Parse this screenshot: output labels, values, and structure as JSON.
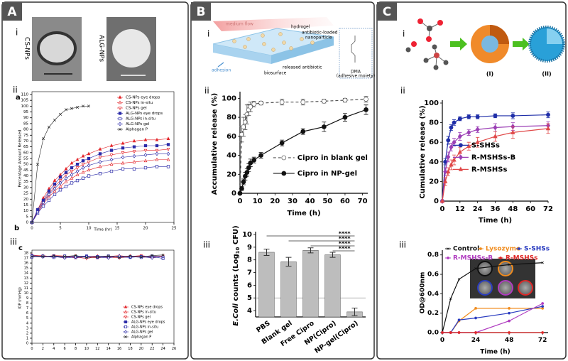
{
  "panels": [
    {
      "label": "A",
      "sections": [
        "i",
        "ii",
        "iii"
      ],
      "images": [
        "CS-NPs",
        "ALG-NPs"
      ],
      "subplot_labels": [
        "a",
        "b",
        "c"
      ]
    },
    {
      "label": "B",
      "sections": [
        "i",
        "ii",
        "iii"
      ],
      "schematic": [
        "medium flow",
        "hydrogel",
        "antibiotic-loaded",
        "nanoparticle",
        "released antibiotic",
        "biosurface",
        "adhesion",
        "DMA",
        "(adhesive moiety)"
      ]
    },
    {
      "label": "C",
      "sections": [
        "i",
        "ii",
        "iii"
      ],
      "schematic": [
        "(I)",
        "(II)"
      ]
    }
  ],
  "chart_data": [
    {
      "type": "line",
      "x_label": "Time (hr)",
      "y_label": "Percentage Amount Released",
      "x": [
        0,
        1,
        2,
        3,
        4,
        5,
        6,
        7,
        8,
        9,
        10,
        12,
        14,
        16,
        18,
        20,
        22,
        24
      ],
      "xlim": [
        0,
        25
      ],
      "xticks": [
        0,
        5,
        10,
        15,
        20,
        25
      ],
      "ylim": [
        0,
        110
      ],
      "yticks": [
        0,
        5,
        10,
        15,
        20,
        25,
        30,
        35,
        40,
        45,
        50,
        55,
        60,
        65,
        70,
        75,
        80,
        85,
        90,
        95,
        100,
        105,
        110
      ],
      "legend": "upper right",
      "series": [
        {
          "name": "CS-NPs eye drops",
          "color": "#e3262b",
          "marker": "triangle",
          "values": [
            0,
            11,
            21,
            29,
            36,
            41,
            46,
            51,
            54,
            57,
            59,
            63,
            66,
            68,
            70,
            71,
            71,
            72
          ]
        },
        {
          "name": "CS-NPs in-situ",
          "color": "#e3262b",
          "marker": "triangle-open",
          "values": [
            0,
            8,
            16,
            22,
            27,
            31,
            35,
            38,
            41,
            43,
            45,
            48,
            50,
            51,
            52,
            53,
            54,
            54
          ]
        },
        {
          "name": "CS-NPs gel",
          "color": "#e3262b",
          "marker": "triangle-down-open",
          "values": [
            0,
            10,
            18,
            25,
            31,
            36,
            41,
            44,
            47,
            50,
            52,
            56,
            58,
            60,
            61,
            62,
            62,
            63
          ]
        },
        {
          "name": "ALG-NPs eye drops",
          "color": "#2a2aa8",
          "marker": "square",
          "values": [
            0,
            11,
            19,
            27,
            33,
            39,
            43,
            47,
            50,
            53,
            55,
            59,
            62,
            64,
            65,
            66,
            66,
            67
          ]
        },
        {
          "name": "ALG-NPs in-situ",
          "color": "#2a2aa8",
          "marker": "square-open",
          "values": [
            0,
            8,
            14,
            19,
            24,
            28,
            31,
            34,
            36,
            38,
            40,
            42,
            44,
            46,
            46,
            47,
            48,
            48
          ]
        },
        {
          "name": "ALG-NPs gel",
          "color": "#2a2aa8",
          "marker": "diamond-open",
          "values": [
            0,
            9,
            17,
            24,
            29,
            34,
            38,
            41,
            44,
            47,
            49,
            52,
            54,
            56,
            57,
            58,
            59,
            59
          ]
        },
        {
          "name": "Alphagan P",
          "color": "#222222",
          "marker": "x",
          "values": [
            0,
            50,
            72,
            82,
            88,
            93,
            97,
            98,
            99,
            100,
            100,
            null,
            null,
            null,
            null,
            null,
            null,
            null
          ]
        }
      ]
    },
    {
      "type": "line",
      "y_label": "IOP (mmHg)",
      "x": [
        0,
        2,
        4,
        6,
        8,
        10,
        12,
        14,
        16,
        18,
        20,
        22,
        24
      ],
      "xlim": [
        0,
        26
      ],
      "xticks": [
        0,
        2,
        4,
        6,
        8,
        10,
        12,
        14,
        16,
        18,
        20,
        22,
        24,
        26
      ],
      "ylim": [
        0,
        18
      ],
      "yticks": [
        0,
        1,
        2,
        3,
        4,
        5,
        6,
        7,
        8,
        9,
        10,
        11,
        12,
        13,
        14,
        15,
        16,
        17,
        18
      ],
      "legend": "lower right",
      "series": [
        {
          "name": "CS-NPs eye drops",
          "color": "#e3262b",
          "marker": "triangle",
          "values": [
            17.6,
            17.4,
            17.3,
            17.1,
            17.4,
            17.2,
            17.0,
            17.3,
            17.5,
            17.2,
            17.4,
            17.3,
            17.2
          ]
        },
        {
          "name": "CS-NPs in-situ",
          "color": "#e3262b",
          "marker": "triangle-open",
          "values": [
            17.4,
            17.5,
            17.2,
            17.3,
            17.0,
            17.3,
            17.4,
            17.1,
            17.3,
            17.4,
            17.2,
            17.1,
            17.3
          ]
        },
        {
          "name": "CS-NPs gel",
          "color": "#e3262b",
          "marker": "triangle-down-open",
          "values": [
            17.3,
            17.2,
            17.5,
            17.4,
            17.2,
            16.9,
            17.3,
            17.2,
            17.0,
            17.3,
            17.5,
            17.2,
            17.4
          ]
        },
        {
          "name": "ALG-NPs eye drops",
          "color": "#2a2aa8",
          "marker": "square",
          "values": [
            17.5,
            17.3,
            17.4,
            17.2,
            17.3,
            17.4,
            17.1,
            17.3,
            17.2,
            17.1,
            17.3,
            17.4,
            17.2
          ]
        },
        {
          "name": "ALG-NPs in-situ",
          "color": "#2a2aa8",
          "marker": "square-open",
          "values": [
            17.2,
            17.4,
            17.1,
            17.4,
            17.1,
            17.2,
            17.3,
            17.4,
            17.2,
            17.3,
            17.1,
            17.3,
            16.9
          ]
        },
        {
          "name": "ALG-NPs gel",
          "color": "#2a2aa8",
          "marker": "diamond-open",
          "values": [
            17.4,
            17.2,
            17.3,
            17.0,
            17.2,
            17.3,
            17.2,
            17.0,
            17.4,
            17.2,
            17.3,
            17.0,
            17.3
          ]
        },
        {
          "name": "Alphagan P",
          "color": "#222222",
          "marker": "x",
          "values": [
            17.3,
            17.3,
            17.4,
            17.3,
            17.5,
            17.1,
            17.2,
            17.4,
            17.1,
            17.4,
            17.2,
            17.5,
            17.6
          ]
        }
      ]
    },
    {
      "type": "line",
      "x_label": "Time (h)",
      "y_label": "Accumulative release (%)",
      "x": [
        0,
        1,
        2,
        3,
        4,
        5,
        6,
        8,
        12,
        24,
        36,
        48,
        60,
        72
      ],
      "xlim": [
        0,
        73
      ],
      "xticks": [
        0,
        10,
        20,
        30,
        40,
        50,
        60,
        70
      ],
      "ylim": [
        0,
        104
      ],
      "yticks": [
        0,
        20,
        40,
        60,
        80,
        100
      ],
      "legend": "center right",
      "series": [
        {
          "name": "Cipro in blank gel",
          "color": "#555555",
          "marker": "circle-open",
          "dashed": true,
          "values": [
            0,
            62,
            70,
            75,
            83,
            88,
            91,
            94,
            95,
            96,
            96,
            97,
            98,
            99
          ],
          "errors": [
            0,
            8,
            10,
            8,
            10,
            6,
            5,
            3,
            2,
            3,
            3,
            2,
            2,
            3
          ]
        },
        {
          "name": "Cipro in NP-gel",
          "color": "#111111",
          "marker": "circle",
          "values": [
            0,
            5,
            12,
            18,
            22,
            27,
            32,
            35,
            40,
            53,
            65,
            70,
            80,
            88
          ],
          "errors": [
            0,
            2,
            3,
            4,
            4,
            4,
            4,
            3,
            3,
            3,
            3,
            5,
            4,
            5
          ]
        }
      ]
    },
    {
      "type": "bar",
      "y_label": {
        "italic": "E.Coli",
        "text": " counts (Log",
        "sub": "10",
        "end": " CFU)"
      },
      "categories": [
        "PBS",
        "Blank gel",
        "Free Cipro",
        "NP(Cipro)",
        "NP-gel(Cipro)"
      ],
      "values": [
        8.6,
        7.85,
        8.75,
        8.4,
        3.9
      ],
      "errors": [
        0.25,
        0.35,
        0.2,
        0.2,
        0.3
      ],
      "color": "#bdbdbd",
      "ylim": [
        3.5,
        10
      ],
      "yticks": [
        4,
        5,
        6,
        7,
        8,
        9,
        10
      ],
      "reference_line": 5,
      "annotations": [
        "****",
        "****",
        "****",
        "****"
      ]
    },
    {
      "type": "line",
      "x_label": "Time (h)",
      "y_label": "Cumulative release (%)",
      "x": [
        0,
        2,
        4,
        6,
        8,
        12,
        18,
        24,
        36,
        48,
        72
      ],
      "xlim": [
        0,
        72
      ],
      "xticks": [
        0,
        12,
        24,
        36,
        48,
        60,
        72
      ],
      "ylim": [
        0,
        100
      ],
      "yticks": [
        0,
        20,
        40,
        60,
        80,
        100
      ],
      "legend": "center",
      "series": [
        {
          "name": "S-SHSs",
          "color": "#1f2ea8",
          "marker": "circle",
          "values": [
            0,
            40,
            62,
            75,
            80,
            84,
            86,
            86,
            87,
            87,
            88
          ],
          "errors": [
            0,
            3,
            4,
            3,
            3,
            2,
            2,
            2,
            2,
            3,
            3
          ]
        },
        {
          "name": "R-MSHSs-B",
          "color": "#9b3fb5",
          "marker": "diamond",
          "values": [
            0,
            30,
            45,
            55,
            60,
            66,
            70,
            73,
            75,
            76,
            77
          ],
          "errors": [
            0,
            4,
            5,
            4,
            4,
            4,
            3,
            3,
            4,
            4,
            4
          ]
        },
        {
          "name": "R-MSHSs",
          "color": "#e04848",
          "marker": "triangle",
          "values": [
            0,
            20,
            30,
            37,
            42,
            50,
            56,
            60,
            66,
            70,
            74
          ],
          "errors": [
            0,
            4,
            4,
            5,
            5,
            5,
            4,
            5,
            5,
            6,
            5
          ]
        }
      ]
    },
    {
      "type": "line",
      "x_label": "Time (h)",
      "y_label": "OD@600nm",
      "x": [
        0,
        6,
        12,
        24,
        48,
        72
      ],
      "xlim": [
        0,
        76
      ],
      "xticks": [
        0,
        24,
        48,
        72
      ],
      "ylim": [
        0,
        0.82
      ],
      "yticks": [
        {
          "value": 0,
          "label": "0.0"
        },
        {
          "value": 0.2,
          "label": "0.2"
        },
        {
          "value": 0.4,
          "label": "0.4"
        },
        {
          "value": 0.6,
          "label": "0.6"
        },
        {
          "value": 0.8,
          "label": "0.8"
        }
      ],
      "legend": "top",
      "series": [
        {
          "name": "Control",
          "color": "#111111",
          "marker": "x",
          "values": [
            0,
            0.35,
            0.55,
            0.66,
            0.7,
            0.72
          ]
        },
        {
          "name": "Lysozyme",
          "color": "#f08c1e",
          "marker": "circle",
          "values": [
            0,
            0,
            0.12,
            0.25,
            0.25,
            0.25
          ]
        },
        {
          "name": "S-SHSs",
          "color": "#2a3cc0",
          "marker": "circle",
          "values": [
            0,
            0,
            0.13,
            0.15,
            0.2,
            0.27
          ]
        },
        {
          "name": "R-MSHSs-B",
          "color": "#b03cc0",
          "marker": "circle",
          "values": [
            0,
            0,
            0,
            0,
            0.12,
            0.3
          ]
        },
        {
          "name": "R-MSHSs",
          "color": "#e02828",
          "marker": "circle",
          "values": [
            0,
            0,
            0,
            0,
            0,
            0
          ]
        }
      ]
    }
  ]
}
